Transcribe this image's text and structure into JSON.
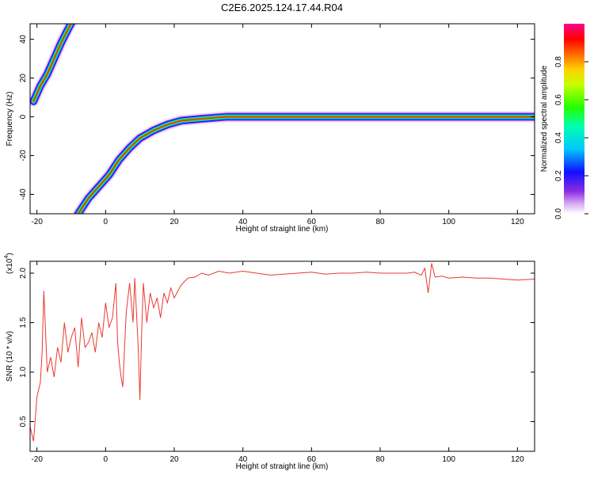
{
  "title": "C2E6.2025.124.17.44.R04",
  "chart_data": [
    {
      "type": "heatmap",
      "xlabel": "Height of straight line (km)",
      "ylabel": "Frequency (Hz)",
      "xlim": [
        -22,
        125
      ],
      "ylim": [
        -50,
        48
      ],
      "xticks": [
        -20,
        0,
        20,
        40,
        60,
        80,
        100,
        120
      ],
      "yticks": [
        -40,
        -20,
        0,
        20,
        40
      ],
      "colorbar": {
        "label": "Normalized spectral amplitude",
        "range": [
          0,
          1
        ],
        "ticks": [
          "0.0",
          "0.2",
          "0.4",
          "0.6",
          "0.8"
        ],
        "tick_values": [
          0.0,
          0.2,
          0.4,
          0.6,
          0.8
        ]
      },
      "traces": [
        {
          "name": "",
          "points": [
            [
              -21,
              8
            ],
            [
              -19,
              16
            ],
            [
              -17,
              22
            ],
            [
              -15,
              30
            ],
            [
              -13,
              38
            ],
            [
              -11,
              45
            ],
            [
              -9.5,
              50
            ]
          ]
        },
        {
          "name": "",
          "points": [
            [
              -8,
              -50
            ],
            [
              -5,
              -42
            ],
            [
              -2,
              -36
            ],
            [
              1,
              -30
            ],
            [
              4,
              -22
            ],
            [
              7,
              -16
            ],
            [
              10,
              -11
            ],
            [
              14,
              -7
            ],
            [
              18,
              -4
            ],
            [
              22,
              -2
            ],
            [
              28,
              -1
            ],
            [
              35,
              0
            ],
            [
              60,
              0
            ],
            [
              90,
              0
            ],
            [
              125,
              0
            ]
          ]
        }
      ]
    },
    {
      "type": "line",
      "xlabel": "Height of straight line (km)",
      "ylabel": "SNR (10 * v/v)",
      "scale_note": "(x10",
      "scale_exp": "4",
      "xlim": [
        -22,
        125
      ],
      "ylim": [
        0.2,
        2.12
      ],
      "xticks": [
        -20,
        0,
        20,
        40,
        60,
        80,
        100,
        120
      ],
      "yticks": [
        "0.5",
        "1.0",
        "1.5",
        "2.0"
      ],
      "ytick_values": [
        0.5,
        1.0,
        1.5,
        2.0
      ],
      "series_color": "#e83a2e",
      "series": [
        {
          "name": "",
          "x": [
            -22,
            -21,
            -20,
            -19,
            -18.5,
            -18,
            -17,
            -16,
            -15,
            -14,
            -13,
            -12,
            -11,
            -10,
            -9,
            -8,
            -7,
            -6,
            -5,
            -4,
            -3,
            -2,
            -1,
            0,
            1,
            2,
            3,
            3.5,
            4,
            4.5,
            5,
            6,
            7,
            8,
            8.5,
            9,
            9.5,
            10,
            10.5,
            11,
            12,
            13,
            14,
            15,
            16,
            17,
            18,
            19,
            20,
            22,
            24,
            26,
            28,
            30,
            33,
            36,
            40,
            44,
            48,
            52,
            56,
            60,
            64,
            68,
            72,
            76,
            80,
            84,
            88,
            90,
            92,
            93,
            94,
            95,
            96,
            98,
            100,
            104,
            108,
            112,
            116,
            120,
            125
          ],
          "y": [
            0.45,
            0.3,
            0.75,
            0.9,
            1.2,
            1.82,
            1.0,
            1.15,
            0.95,
            1.25,
            1.1,
            1.5,
            1.2,
            1.35,
            1.45,
            1.05,
            1.55,
            1.25,
            1.3,
            1.4,
            1.2,
            1.5,
            1.35,
            1.7,
            1.45,
            1.55,
            1.9,
            1.3,
            1.1,
            0.95,
            0.85,
            1.6,
            1.9,
            1.5,
            1.95,
            1.6,
            1.25,
            0.72,
            1.4,
            1.9,
            1.5,
            1.8,
            1.65,
            1.75,
            1.55,
            1.8,
            1.7,
            1.85,
            1.75,
            1.88,
            1.95,
            1.96,
            2.0,
            1.98,
            2.02,
            2.0,
            2.02,
            2.0,
            1.98,
            1.99,
            2.0,
            2.01,
            1.99,
            2.0,
            2.0,
            2.01,
            2.0,
            2.0,
            2.0,
            2.01,
            1.98,
            2.05,
            1.8,
            2.1,
            1.96,
            1.97,
            1.95,
            1.96,
            1.95,
            1.95,
            1.94,
            1.93,
            1.94
          ]
        }
      ]
    }
  ]
}
